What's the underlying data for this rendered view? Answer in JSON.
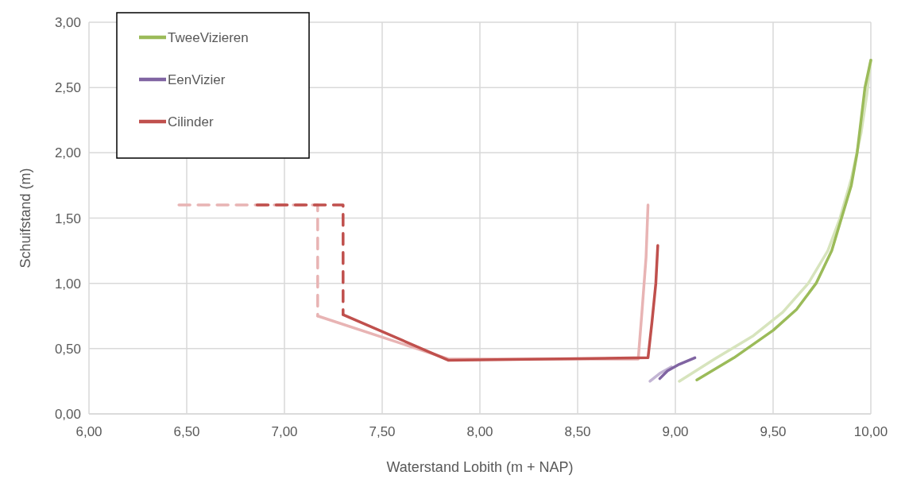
{
  "chart_data": {
    "type": "line",
    "xlabel": "Waterstand Lobith (m + NAP)",
    "ylabel": "Schuifstand (m)",
    "xlim": [
      6,
      10
    ],
    "ylim": [
      0,
      3
    ],
    "xticks": [
      {
        "value": 6,
        "label": "6,00"
      },
      {
        "value": 6.5,
        "label": "6,50"
      },
      {
        "value": 7,
        "label": "7,00"
      },
      {
        "value": 7.5,
        "label": "7,50"
      },
      {
        "value": 8,
        "label": "8,00"
      },
      {
        "value": 8.5,
        "label": "8,50"
      },
      {
        "value": 9,
        "label": "9,00"
      },
      {
        "value": 9.5,
        "label": "9,50"
      },
      {
        "value": 10,
        "label": "10,00"
      }
    ],
    "yticks": [
      {
        "value": 0,
        "label": "0,00"
      },
      {
        "value": 0.5,
        "label": "0,50"
      },
      {
        "value": 1,
        "label": "1,00"
      },
      {
        "value": 1.5,
        "label": "1,50"
      },
      {
        "value": 2,
        "label": "2,00"
      },
      {
        "value": 2.5,
        "label": "2,50"
      },
      {
        "value": 3,
        "label": "3,00"
      }
    ],
    "grid": true,
    "legend": "top left",
    "marker": "none",
    "series": [
      {
        "color": "#d7e4bd",
        "x": [
          9.02,
          9.2,
          9.4,
          9.55,
          9.68,
          9.78,
          9.84,
          9.9,
          9.95,
          9.98,
          10
        ],
        "values": [
          0.25,
          0.42,
          0.6,
          0.78,
          1.0,
          1.25,
          1.49,
          1.8,
          2.15,
          2.45,
          2.71
        ]
      },
      {
        "color": "#c3b5d4",
        "x": [
          8.87,
          8.92,
          8.98
        ],
        "values": [
          0.25,
          0.31,
          0.36
        ]
      },
      {
        "color": "#e8b4b4",
        "line_style": "dashed",
        "x": [
          6.46,
          7.17,
          7.17
        ],
        "values": [
          1.6,
          1.6,
          0.75
        ]
      },
      {
        "color": "#e8b4b4",
        "x": [
          7.17,
          7.84,
          8.81,
          8.83,
          8.85,
          8.86
        ],
        "values": [
          0.75,
          0.42,
          0.42,
          0.8,
          1.2,
          1.6
        ]
      },
      {
        "name": "TweeVizieren",
        "color": "#9bbb59",
        "x": [
          9.11,
          9.3,
          9.5,
          9.62,
          9.72,
          9.8,
          9.85,
          9.9,
          9.93,
          9.97,
          10
        ],
        "values": [
          0.26,
          0.43,
          0.64,
          0.8,
          1.0,
          1.25,
          1.5,
          1.75,
          2.0,
          2.5,
          2.71
        ]
      },
      {
        "name": "EenVizier",
        "color": "#8064a2",
        "x": [
          8.92,
          8.96,
          9.02,
          9.1
        ],
        "values": [
          0.27,
          0.33,
          0.38,
          0.43
        ]
      },
      {
        "color": "#c0504d",
        "line_style": "dashed",
        "x": [
          6.86,
          7.3,
          7.3
        ],
        "values": [
          1.6,
          1.6,
          0.76
        ]
      },
      {
        "name": "Cilinder",
        "color": "#c0504d",
        "x": [
          7.3,
          7.84,
          8.86,
          8.88,
          8.9,
          8.91
        ],
        "values": [
          0.76,
          0.41,
          0.43,
          0.7,
          1.0,
          1.29
        ]
      }
    ]
  }
}
